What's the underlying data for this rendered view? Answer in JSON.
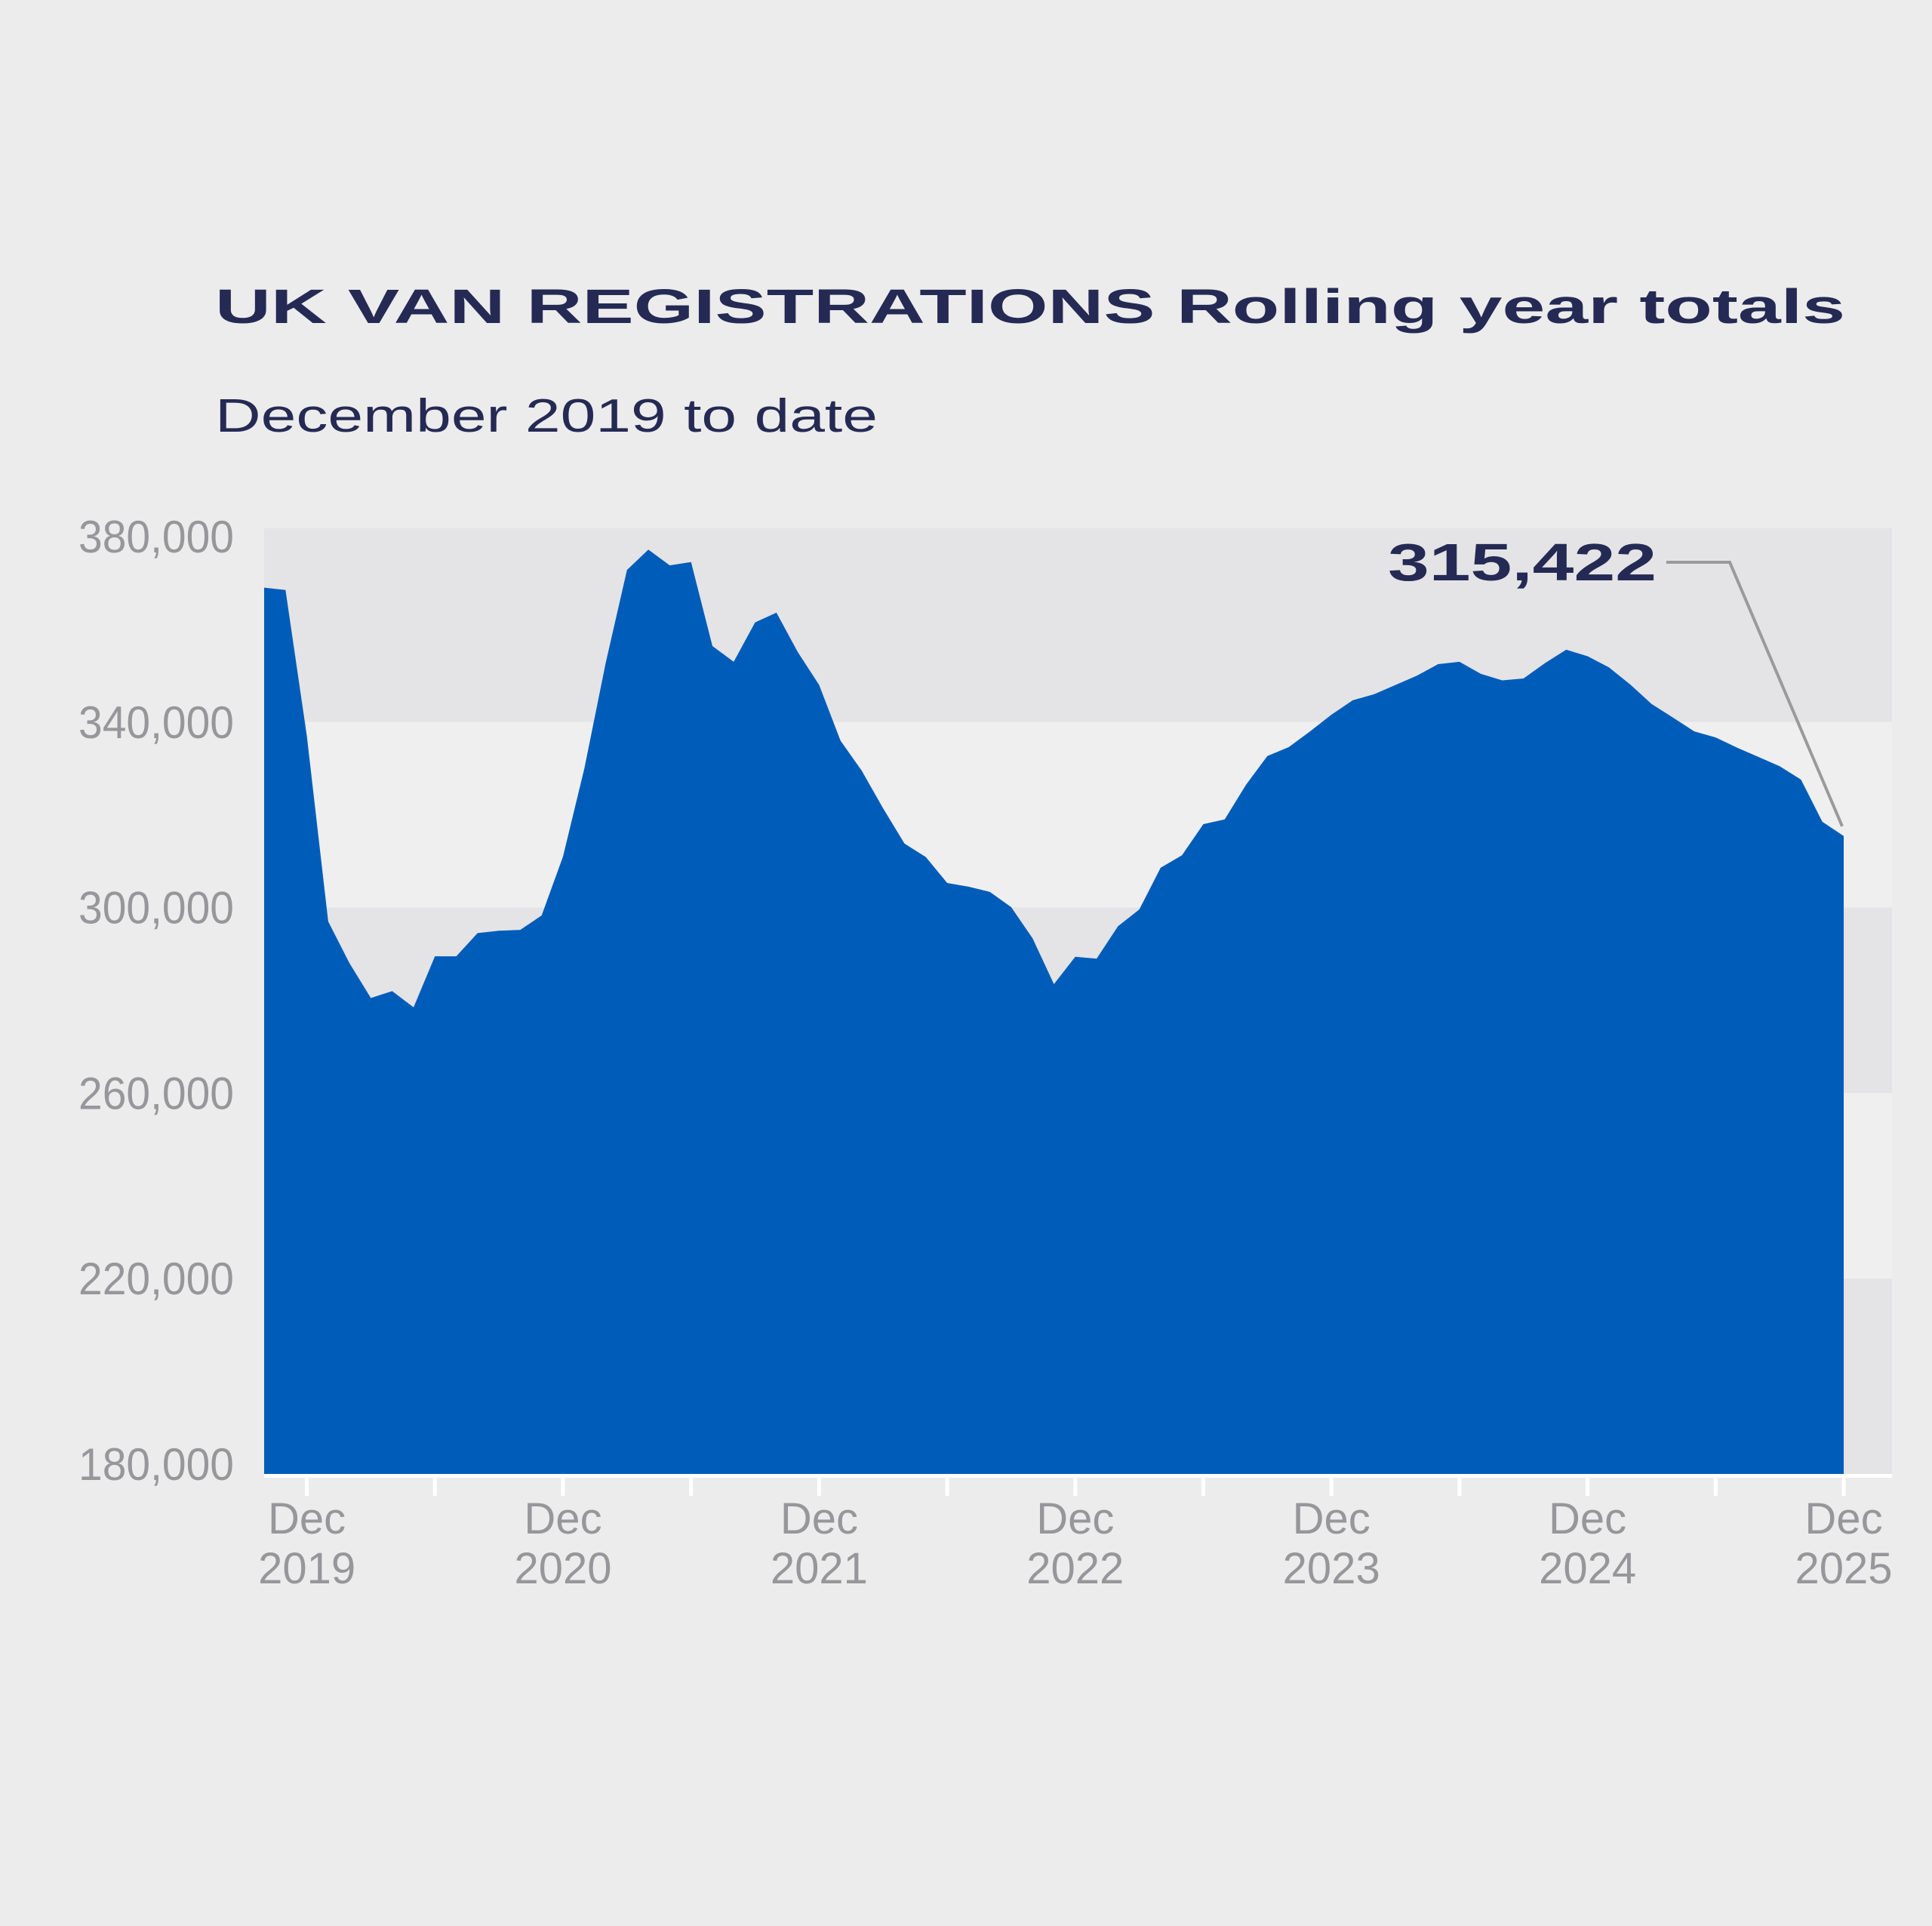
{
  "title": "UK VAN REGISTRATIONS Rolling year totals",
  "subtitle": "December 2019 to date",
  "annotation": {
    "label": "315,422",
    "value": 315422
  },
  "colors": {
    "background": "#ececec",
    "band_dark": "#e4e4e6",
    "band_light": "#efeff0",
    "area_blue": "#005CB9",
    "title_navy": "#252a54",
    "axis_label_gray": "#97979b",
    "callout_gray": "#9a9a9a",
    "axis_line": "#ffffff"
  },
  "chart_data": {
    "type": "area",
    "title": "UK VAN REGISTRATIONS Rolling year totals",
    "subtitle": "December 2019 to date",
    "series_name": "UK van registrations, rolling 12-month total",
    "grid": "horizontal alternating bands",
    "legend_position": "none",
    "ylim": [
      180000,
      380000
    ],
    "y_tick_values": [
      380000,
      340000,
      300000,
      260000,
      220000,
      180000
    ],
    "y_tick_labels": [
      "380,000",
      "340,000",
      "300,000",
      "260,000",
      "220,000",
      "180,000"
    ],
    "x_major_ticks": [
      {
        "month_index": 2,
        "line1": "Dec",
        "line2": "2019"
      },
      {
        "month_index": 14,
        "line1": "Dec",
        "line2": "2020"
      },
      {
        "month_index": 26,
        "line1": "Dec",
        "line2": "2021"
      },
      {
        "month_index": 38,
        "line1": "Dec",
        "line2": "2022"
      },
      {
        "month_index": 50,
        "line1": "Dec",
        "line2": "2023"
      },
      {
        "month_index": 62,
        "line1": "Dec",
        "line2": "2024"
      },
      {
        "month_index": 74,
        "line1": "Dec",
        "line2": "2025"
      }
    ],
    "x_minor_tick_month_indices": [
      8,
      20,
      32,
      44,
      56,
      68
    ],
    "last_point_label": "315,422",
    "months": [
      "Oct 2019",
      "Nov 2019",
      "Dec 2019",
      "Jan 2020",
      "Feb 2020",
      "Mar 2020",
      "Apr 2020",
      "May 2020",
      "Jun 2020",
      "Jul 2020",
      "Aug 2020",
      "Sep 2020",
      "Oct 2020",
      "Nov 2020",
      "Dec 2020",
      "Jan 2021",
      "Feb 2021",
      "Mar 2021",
      "Apr 2021",
      "May 2021",
      "Jun 2021",
      "Jul 2021",
      "Aug 2021",
      "Sep 2021",
      "Oct 2021",
      "Nov 2021",
      "Dec 2021",
      "Jan 2022",
      "Feb 2022",
      "Mar 2022",
      "Apr 2022",
      "May 2022",
      "Jun 2022",
      "Jul 2022",
      "Aug 2022",
      "Sep 2022",
      "Oct 2022",
      "Nov 2022",
      "Dec 2022",
      "Jan 2023",
      "Feb 2023",
      "Mar 2023",
      "Apr 2023",
      "May 2023",
      "Jun 2023",
      "Jul 2023",
      "Aug 2023",
      "Sep 2023",
      "Oct 2023",
      "Nov 2023",
      "Dec 2023",
      "Jan 2024",
      "Feb 2024",
      "Mar 2024",
      "Apr 2024",
      "May 2024",
      "Jun 2024",
      "Jul 2024",
      "Aug 2024",
      "Sep 2024",
      "Oct 2024",
      "Nov 2024",
      "Dec 2024",
      "Jan 2025",
      "Feb 2025",
      "Mar 2025",
      "Apr 2025",
      "May 2025",
      "Jun 2025",
      "Jul 2025",
      "Aug 2025",
      "Sep 2025",
      "Oct 2025",
      "Nov 2025",
      "Dec 2025"
    ],
    "values": [
      369000,
      368500,
      337000,
      297000,
      288000,
      280500,
      282000,
      278500,
      289500,
      289500,
      294500,
      295000,
      295200,
      298300,
      311000,
      330000,
      352700,
      372800,
      377200,
      373800,
      374500,
      356400,
      353000,
      361500,
      363600,
      355100,
      348000,
      336000,
      329500,
      321400,
      313800,
      310900,
      305300,
      304500,
      303400,
      300100,
      293400,
      283500,
      289400,
      289000,
      296000,
      299600,
      308600,
      311300,
      318000,
      319000,
      326500,
      332700,
      334600,
      338000,
      341600,
      344700,
      346000,
      348000,
      350000,
      352500,
      353000,
      350400,
      349000,
      349400,
      352700,
      355600,
      354200,
      351800,
      348100,
      343900,
      341000,
      338000,
      336700,
      334500,
      332500,
      330500,
      327600,
      318500,
      315422
    ]
  }
}
